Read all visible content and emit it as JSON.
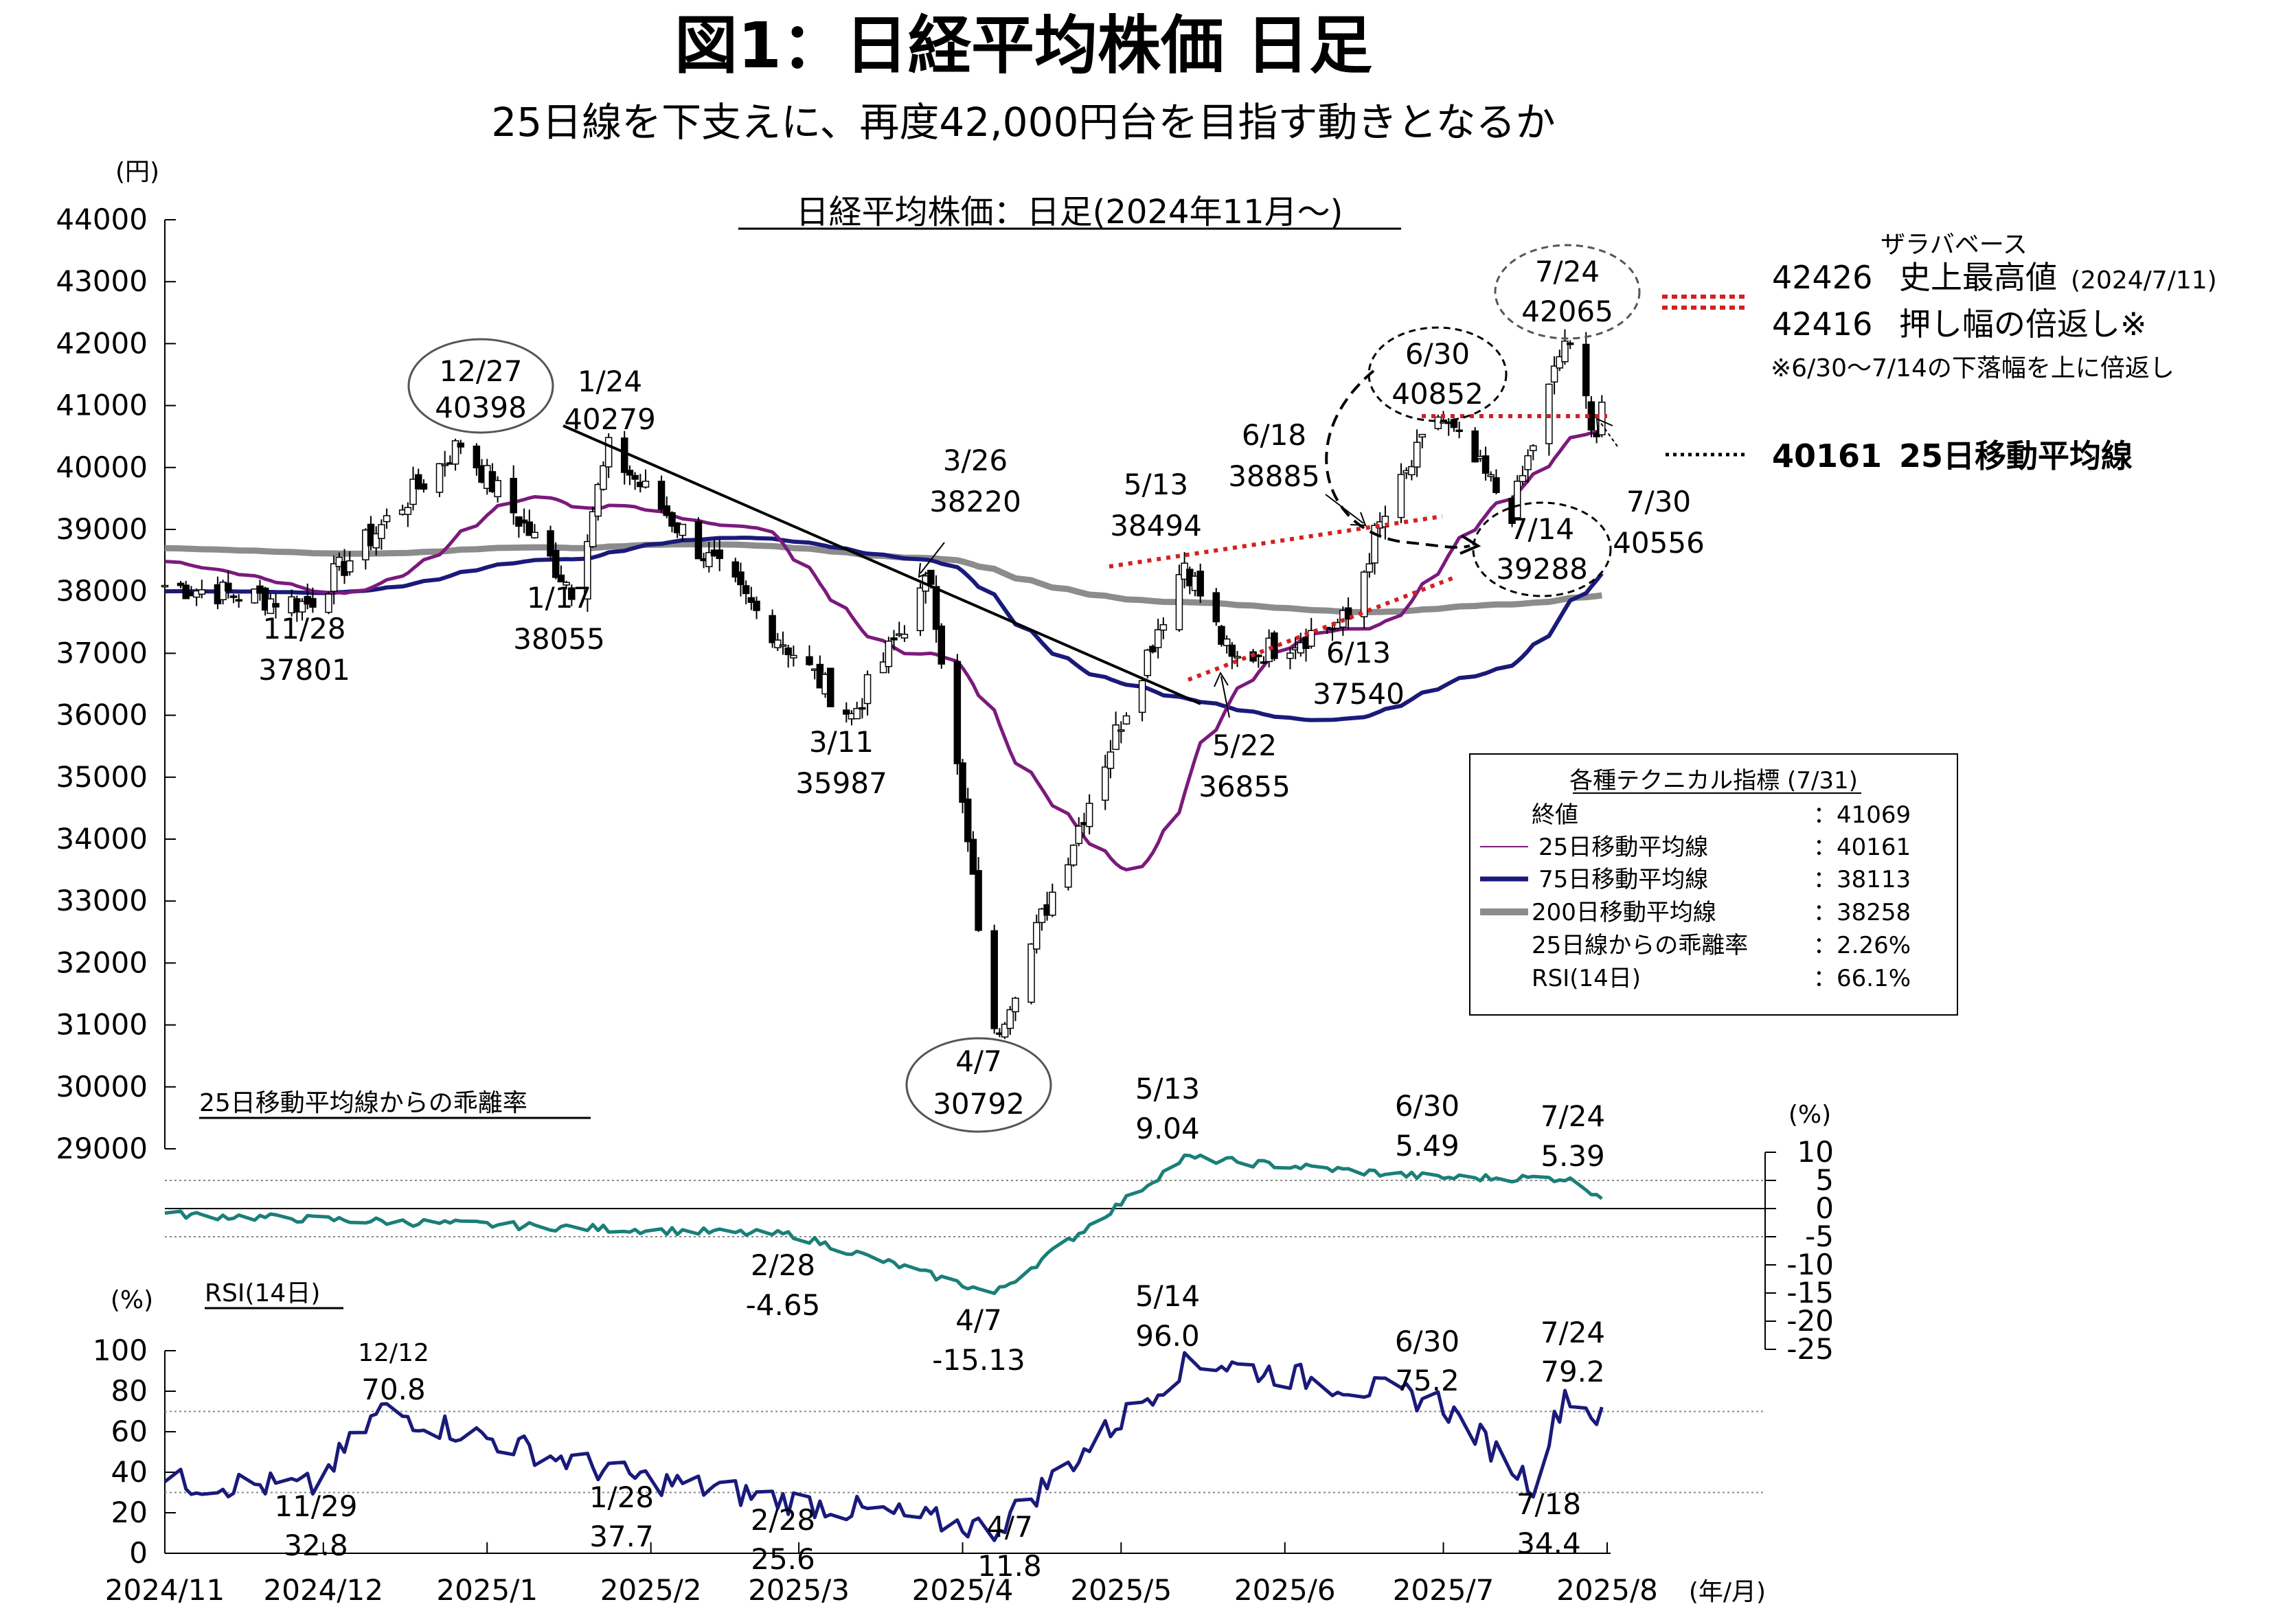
{
  "header": {
    "title": "図1：日経平均株価 日足",
    "subtitle": "25日線を下支えに、再度42,000円台を目指す動きとなるか"
  },
  "main_panel": {
    "title": "日経平均株価：日足(2024年11月～)",
    "unit": "(円)",
    "y_ticks": [
      "44000",
      "43000",
      "42000",
      "41000",
      "40000",
      "39000",
      "38000",
      "37000",
      "36000",
      "35000",
      "34000",
      "33000",
      "32000",
      "31000",
      "30000",
      "29000"
    ]
  },
  "annotations": {
    "a1227": [
      "12/27",
      "40398"
    ],
    "a0124": [
      "1/24",
      "40279"
    ],
    "a1128": [
      "11/28",
      "37801"
    ],
    "a0117": [
      "1/17",
      "38055"
    ],
    "a0311": [
      "3/11",
      "35987"
    ],
    "a0326": [
      "3/26",
      "38220"
    ],
    "a0407": [
      "4/7",
      "30792"
    ],
    "a0513": [
      "5/13",
      "38494"
    ],
    "a0522": [
      "5/22",
      "36855"
    ],
    "a0618": [
      "6/18",
      "38885"
    ],
    "a0613": [
      "6/13",
      "37540"
    ],
    "a0630": [
      "6/30",
      "40852"
    ],
    "a0714": [
      "7/14",
      "39288"
    ],
    "a0724": [
      "7/24",
      "42065"
    ],
    "a0730": [
      "7/30",
      "40556"
    ]
  },
  "right_info": {
    "zara": "ザラバベース",
    "v1": "42426",
    "l1": "史上最高値",
    "l1b": "(2024/7/11)",
    "v2": "42416",
    "l2": "押し幅の倍返し※",
    "note": "※6/30～7/14の下落幅を上に倍返し",
    "v3": "40161",
    "l3": "25日移動平均線"
  },
  "legend": {
    "title": "各種テクニカル指標 (7/31)",
    "rows": [
      {
        "label": "終値",
        "value": "：41069"
      },
      {
        "label": "25日移動平均線",
        "value": "：40161"
      },
      {
        "label": "75日移動平均線",
        "value": "：38113"
      },
      {
        "label": "200日移動平均線",
        "value": "：38258"
      },
      {
        "label": "25日線からの乖離率",
        "value": "：2.26%"
      },
      {
        "label": "RSI(14日)",
        "value": "：66.1%"
      }
    ]
  },
  "dev_panel": {
    "title": "25日移動平均線からの乖離率",
    "unit": "(%)",
    "y_ticks": [
      "10",
      "5",
      "0",
      "-5",
      "-10",
      "-15",
      "-20",
      "-25"
    ],
    "ann": {
      "d0513": [
        "5/13",
        "9.04"
      ],
      "d0630": [
        "6/30",
        "5.49"
      ],
      "d0724": [
        "7/24",
        "5.39"
      ],
      "d0228": [
        "2/28",
        "-4.65"
      ],
      "d0407": [
        "4/7",
        "-15.13"
      ]
    }
  },
  "rsi_panel": {
    "title": "RSI(14日)",
    "unit": "(%)",
    "y_ticks": [
      "100",
      "80",
      "60",
      "40",
      "20",
      "0"
    ],
    "ann": {
      "r1212": [
        "12/12",
        "70.8"
      ],
      "r1129": [
        "11/29",
        "32.8"
      ],
      "r0128": [
        "1/28",
        "37.7"
      ],
      "r0228": [
        "2/28",
        "25.6"
      ],
      "r0407": [
        "4/7",
        "11.8"
      ],
      "r0514": [
        "5/14",
        "96.0"
      ],
      "r0630": [
        "6/30",
        "75.2"
      ],
      "r0724": [
        "7/24",
        "79.2"
      ],
      "r0718": [
        "7/18",
        "34.4"
      ]
    }
  },
  "x_axis": {
    "labels": [
      "2024/11",
      "2024/12",
      "2025/1",
      "2025/2",
      "2025/3",
      "2025/4",
      "2025/5",
      "2025/6",
      "2025/7",
      "2025/8"
    ],
    "unit": "(年/月)"
  },
  "colors": {
    "ma25": "#7b1a7b",
    "ma75": "#1a1a7a",
    "ma200": "#8c8c8c",
    "deviation": "#1a7f78",
    "rsi": "#1a1a7a",
    "dotted_red": "#d42020"
  },
  "chart_data": [
    {
      "type": "candlestick",
      "title": "日経平均株価：日足(2024年11月～)",
      "ylabel": "(円)",
      "ylim": [
        29000,
        44000
      ],
      "x_range": [
        "2024/11",
        "2025/8"
      ],
      "key_points": [
        {
          "date": "2024/11/28",
          "value": 37801
        },
        {
          "date": "2024/12/27",
          "value": 40398
        },
        {
          "date": "2025/1/17",
          "value": 38055
        },
        {
          "date": "2025/1/24",
          "value": 40279
        },
        {
          "date": "2025/3/11",
          "value": 35987
        },
        {
          "date": "2025/3/26",
          "value": 38220
        },
        {
          "date": "2025/4/7",
          "value": 30792
        },
        {
          "date": "2025/5/13",
          "value": 38494
        },
        {
          "date": "2025/5/22",
          "value": 36855
        },
        {
          "date": "2025/6/13",
          "value": 37540
        },
        {
          "date": "2025/6/18",
          "value": 38885
        },
        {
          "date": "2025/6/30",
          "value": 40852
        },
        {
          "date": "2025/7/14",
          "value": 39288
        },
        {
          "date": "2025/7/24",
          "value": 42065
        },
        {
          "date": "2025/7/30",
          "value": 40556
        }
      ],
      "series": [
        {
          "name": "25日移動平均線",
          "last": 40161
        },
        {
          "name": "75日移動平均線",
          "last": 38113
        },
        {
          "name": "200日移動平均線",
          "last": 38258
        }
      ]
    },
    {
      "type": "line",
      "title": "25日移動平均線からの乖離率",
      "ylabel": "(%)",
      "ylim": [
        -25,
        10
      ],
      "key_points": [
        {
          "date": "2025/2/28",
          "value": -4.65
        },
        {
          "date": "2025/4/7",
          "value": -15.13
        },
        {
          "date": "2025/5/13",
          "value": 9.04
        },
        {
          "date": "2025/6/30",
          "value": 5.49
        },
        {
          "date": "2025/7/24",
          "value": 5.39
        }
      ]
    },
    {
      "type": "line",
      "title": "RSI(14日)",
      "ylabel": "(%)",
      "ylim": [
        0,
        100
      ],
      "key_points": [
        {
          "date": "2024/11/29",
          "value": 32.8
        },
        {
          "date": "2024/12/12",
          "value": 70.8
        },
        {
          "date": "2025/1/28",
          "value": 37.7
        },
        {
          "date": "2025/2/28",
          "value": 25.6
        },
        {
          "date": "2025/4/7",
          "value": 11.8
        },
        {
          "date": "2025/5/14",
          "value": 96.0
        },
        {
          "date": "2025/6/30",
          "value": 75.2
        },
        {
          "date": "2025/7/18",
          "value": 34.4
        },
        {
          "date": "2025/7/24",
          "value": 79.2
        }
      ]
    }
  ]
}
